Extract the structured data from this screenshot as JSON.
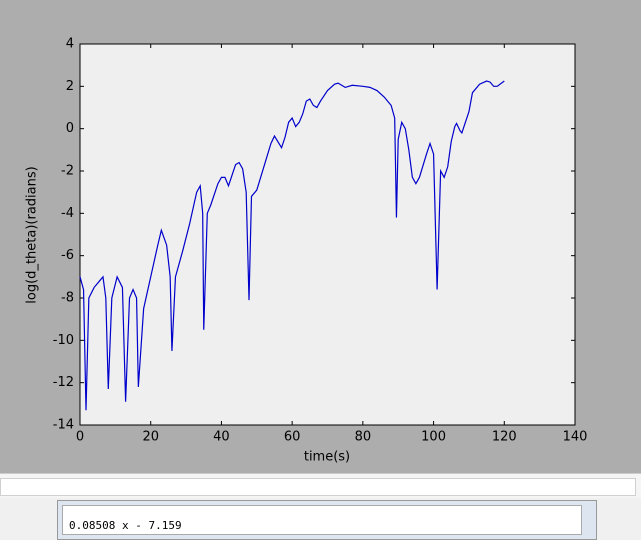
{
  "chart_data": {
    "type": "line",
    "xlabel": "time(s)",
    "ylabel": "log(d_theta)(radians)",
    "x": [
      0,
      1,
      1.7,
      2.5,
      4,
      5.5,
      6.5,
      7.3,
      8,
      9,
      10.5,
      12,
      12.9,
      14,
      15,
      16,
      16.5,
      18,
      20,
      22,
      23,
      24.5,
      25.5,
      26,
      27,
      29,
      31,
      33,
      34,
      34.7,
      35,
      36,
      37,
      39,
      40,
      41,
      42,
      43,
      44,
      45,
      46,
      47,
      47.8,
      48.5,
      50,
      52,
      54,
      55,
      57,
      58,
      59,
      60,
      61,
      62,
      63,
      64,
      65,
      66,
      67,
      68,
      70,
      72,
      73,
      75,
      77,
      80,
      82,
      84,
      86,
      88,
      89,
      89.5,
      90,
      91,
      92,
      93,
      94,
      95,
      96,
      98,
      99,
      100,
      101,
      102,
      103,
      104,
      105,
      106,
      106.5,
      107.5,
      108,
      110,
      111,
      113,
      115,
      116,
      117,
      118,
      120
    ],
    "series": [
      {
        "name": "d_theta",
        "color": "#0000cc",
        "values": [
          -7.0,
          -7.6,
          -13.3,
          -8.0,
          -7.5,
          -7.2,
          -7.0,
          -8.0,
          -12.3,
          -8.0,
          -7.0,
          -7.5,
          -12.9,
          -8.0,
          -7.6,
          -8.0,
          -12.2,
          -8.5,
          -7.0,
          -5.5,
          -4.8,
          -5.5,
          -7.0,
          -10.5,
          -7.0,
          -5.8,
          -4.5,
          -3.0,
          -2.7,
          -4.0,
          -9.5,
          -4.0,
          -3.6,
          -2.6,
          -2.3,
          -2.3,
          -2.7,
          -2.2,
          -1.7,
          -1.6,
          -1.9,
          -3.0,
          -8.1,
          -3.2,
          -2.9,
          -1.8,
          -0.7,
          -0.35,
          -0.9,
          -0.4,
          0.3,
          0.5,
          0.1,
          0.3,
          0.7,
          1.3,
          1.4,
          1.1,
          1.0,
          1.3,
          1.8,
          2.1,
          2.15,
          1.95,
          2.05,
          2.0,
          1.95,
          1.8,
          1.5,
          1.1,
          0.5,
          -4.2,
          -0.5,
          0.3,
          0.0,
          -1.0,
          -2.3,
          -2.6,
          -2.3,
          -1.2,
          -0.7,
          -1.2,
          -7.6,
          -2.0,
          -2.3,
          -1.8,
          -0.6,
          0.1,
          0.25,
          -0.1,
          -0.2,
          0.8,
          1.7,
          2.1,
          2.25,
          2.2,
          2.0,
          2.0,
          2.25
        ]
      }
    ],
    "xlim": [
      0,
      140
    ],
    "xticks": [
      0,
      20,
      40,
      60,
      80,
      100,
      120,
      140
    ],
    "ylim": [
      -14,
      4
    ],
    "yticks": [
      -14,
      -12,
      -10,
      -8,
      -6,
      -4,
      -2,
      0,
      2,
      4
    ]
  },
  "text_box": {
    "text": "0.08508 x - 7.159"
  }
}
